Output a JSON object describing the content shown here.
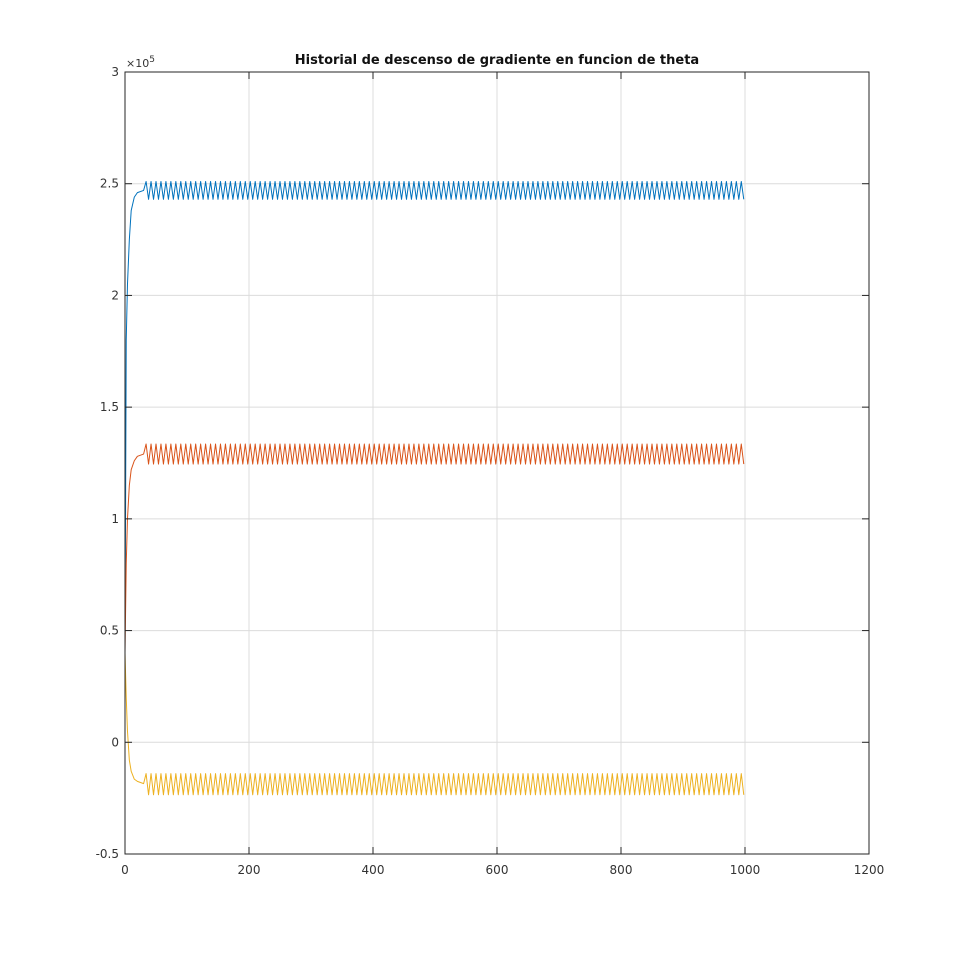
{
  "chart_data": {
    "type": "line",
    "title": "Historial de descenso de gradiente en funcion de theta",
    "xlabel": "",
    "ylabel": "",
    "xlim": [
      0,
      1200
    ],
    "ylim": [
      -50000,
      300000
    ],
    "x_ticks": [
      0,
      200,
      400,
      600,
      800,
      1000,
      1200
    ],
    "x_tick_labels": [
      "0",
      "200",
      "400",
      "600",
      "800",
      "1000",
      "1200"
    ],
    "y_ticks": [
      -50000,
      0,
      50000,
      100000,
      150000,
      200000,
      250000,
      300000
    ],
    "y_tick_labels": [
      "-0.5",
      "0",
      "0.5",
      "1",
      "1.5",
      "2",
      "2.5",
      "3"
    ],
    "y_exponent_label": "×10",
    "y_exponent_power": "5",
    "grid": true,
    "iterations": 1000,
    "series": [
      {
        "color": "#0072BD",
        "start": 40000,
        "transient": [
          [
            0,
            40000
          ],
          [
            2,
            180000
          ],
          [
            4,
            205000
          ],
          [
            7,
            225000
          ],
          [
            10,
            238000
          ],
          [
            15,
            244000
          ],
          [
            20,
            246000
          ],
          [
            30,
            247000
          ]
        ],
        "steady_center": 247000,
        "oscillation_low": 243000,
        "oscillation_high": 251000,
        "oscillation_period": 8
      },
      {
        "color": "#D95319",
        "start": 40000,
        "transient": [
          [
            0,
            40000
          ],
          [
            2,
            80000
          ],
          [
            4,
            100000
          ],
          [
            7,
            115000
          ],
          [
            10,
            122000
          ],
          [
            15,
            126000
          ],
          [
            20,
            128000
          ],
          [
            30,
            129000
          ]
        ],
        "steady_center": 129000,
        "oscillation_low": 124500,
        "oscillation_high": 133500,
        "oscillation_period": 8
      },
      {
        "color": "#EDB120",
        "start": 40000,
        "transient": [
          [
            0,
            40000
          ],
          [
            2,
            20000
          ],
          [
            4,
            5000
          ],
          [
            7,
            -8000
          ],
          [
            10,
            -13000
          ],
          [
            15,
            -16500
          ],
          [
            20,
            -17500
          ],
          [
            30,
            -18500
          ]
        ],
        "steady_center": -18500,
        "oscillation_low": -23500,
        "oscillation_high": -14000,
        "oscillation_period": 8
      }
    ]
  }
}
